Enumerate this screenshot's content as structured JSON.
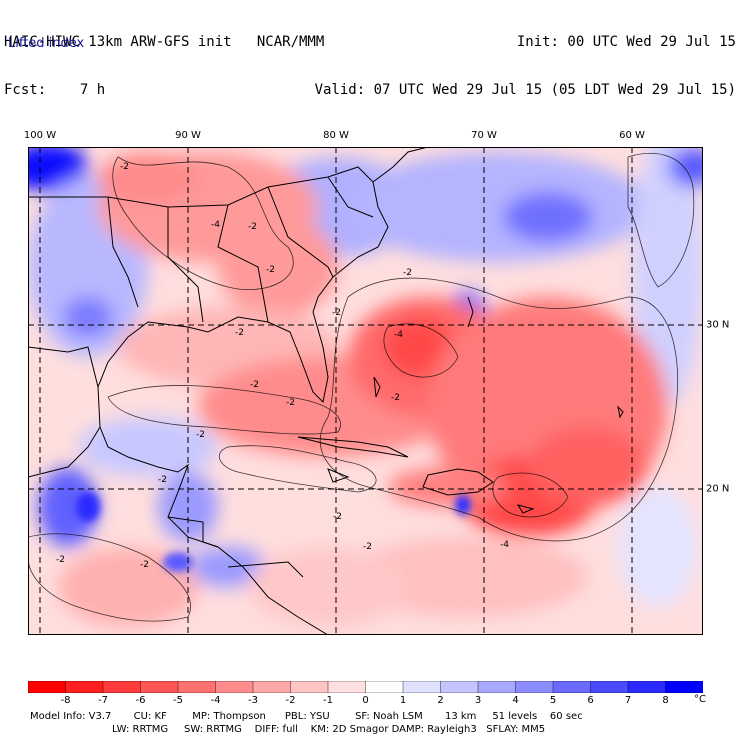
{
  "header": {
    "model_line": "HAIC-HIWC 13km ARW-GFS init   NCAR/MMM",
    "fcst_line": "Fcst:    7 h",
    "init_line": "Init: 00 UTC Wed 29 Jul 15",
    "valid_line": "Valid: 07 UTC Wed 29 Jul 15 (05 LDT Wed 29 Jul 15)"
  },
  "field_name": "Lifted index",
  "longitude_labels": [
    "100 W",
    "90 W",
    "80 W",
    "70 W",
    "60 W"
  ],
  "latitude_labels": [
    "30 N",
    "20 N"
  ],
  "map": {
    "contour_labels": [
      "-2",
      "-2",
      "-4",
      "-2",
      "-2",
      "-2",
      "-2",
      "-2",
      "-2",
      "-4",
      "-2",
      "-4",
      "-2",
      "-2",
      "-2",
      "-2",
      "-2",
      "-2"
    ],
    "negative_color": "#ff3b3b",
    "positive_color": "#3a3aff"
  },
  "colorbar": {
    "labels": [
      "-8",
      "-7",
      "-6",
      "-5",
      "-4",
      "-3",
      "-2",
      "-1",
      "0",
      "1",
      "2",
      "3",
      "4",
      "5",
      "6",
      "7",
      "8"
    ],
    "unit": "°C",
    "colors": [
      "#ff0000",
      "#ff1f1f",
      "#ff3b3b",
      "#ff5555",
      "#ff7070",
      "#ff8c8c",
      "#ffa8a8",
      "#ffc4c4",
      "#ffe0e0",
      "#ffffff",
      "#e0e0ff",
      "#c4c4ff",
      "#a8a8ff",
      "#8c8cff",
      "#6a6aff",
      "#4a4aff",
      "#2a2aff",
      "#0000ff"
    ]
  },
  "footer": {
    "line1": "Model Info: V3.7       CU: KF        MP: Thompson      PBL: YSU        SF: Noah LSM       13 km     51 levels    60 sec",
    "line2": "LW: RRTMG     SW: RRTMG    DIFF: full    KM: 2D Smagor DAMP: Rayleigh3   SFLAY: MM5"
  }
}
